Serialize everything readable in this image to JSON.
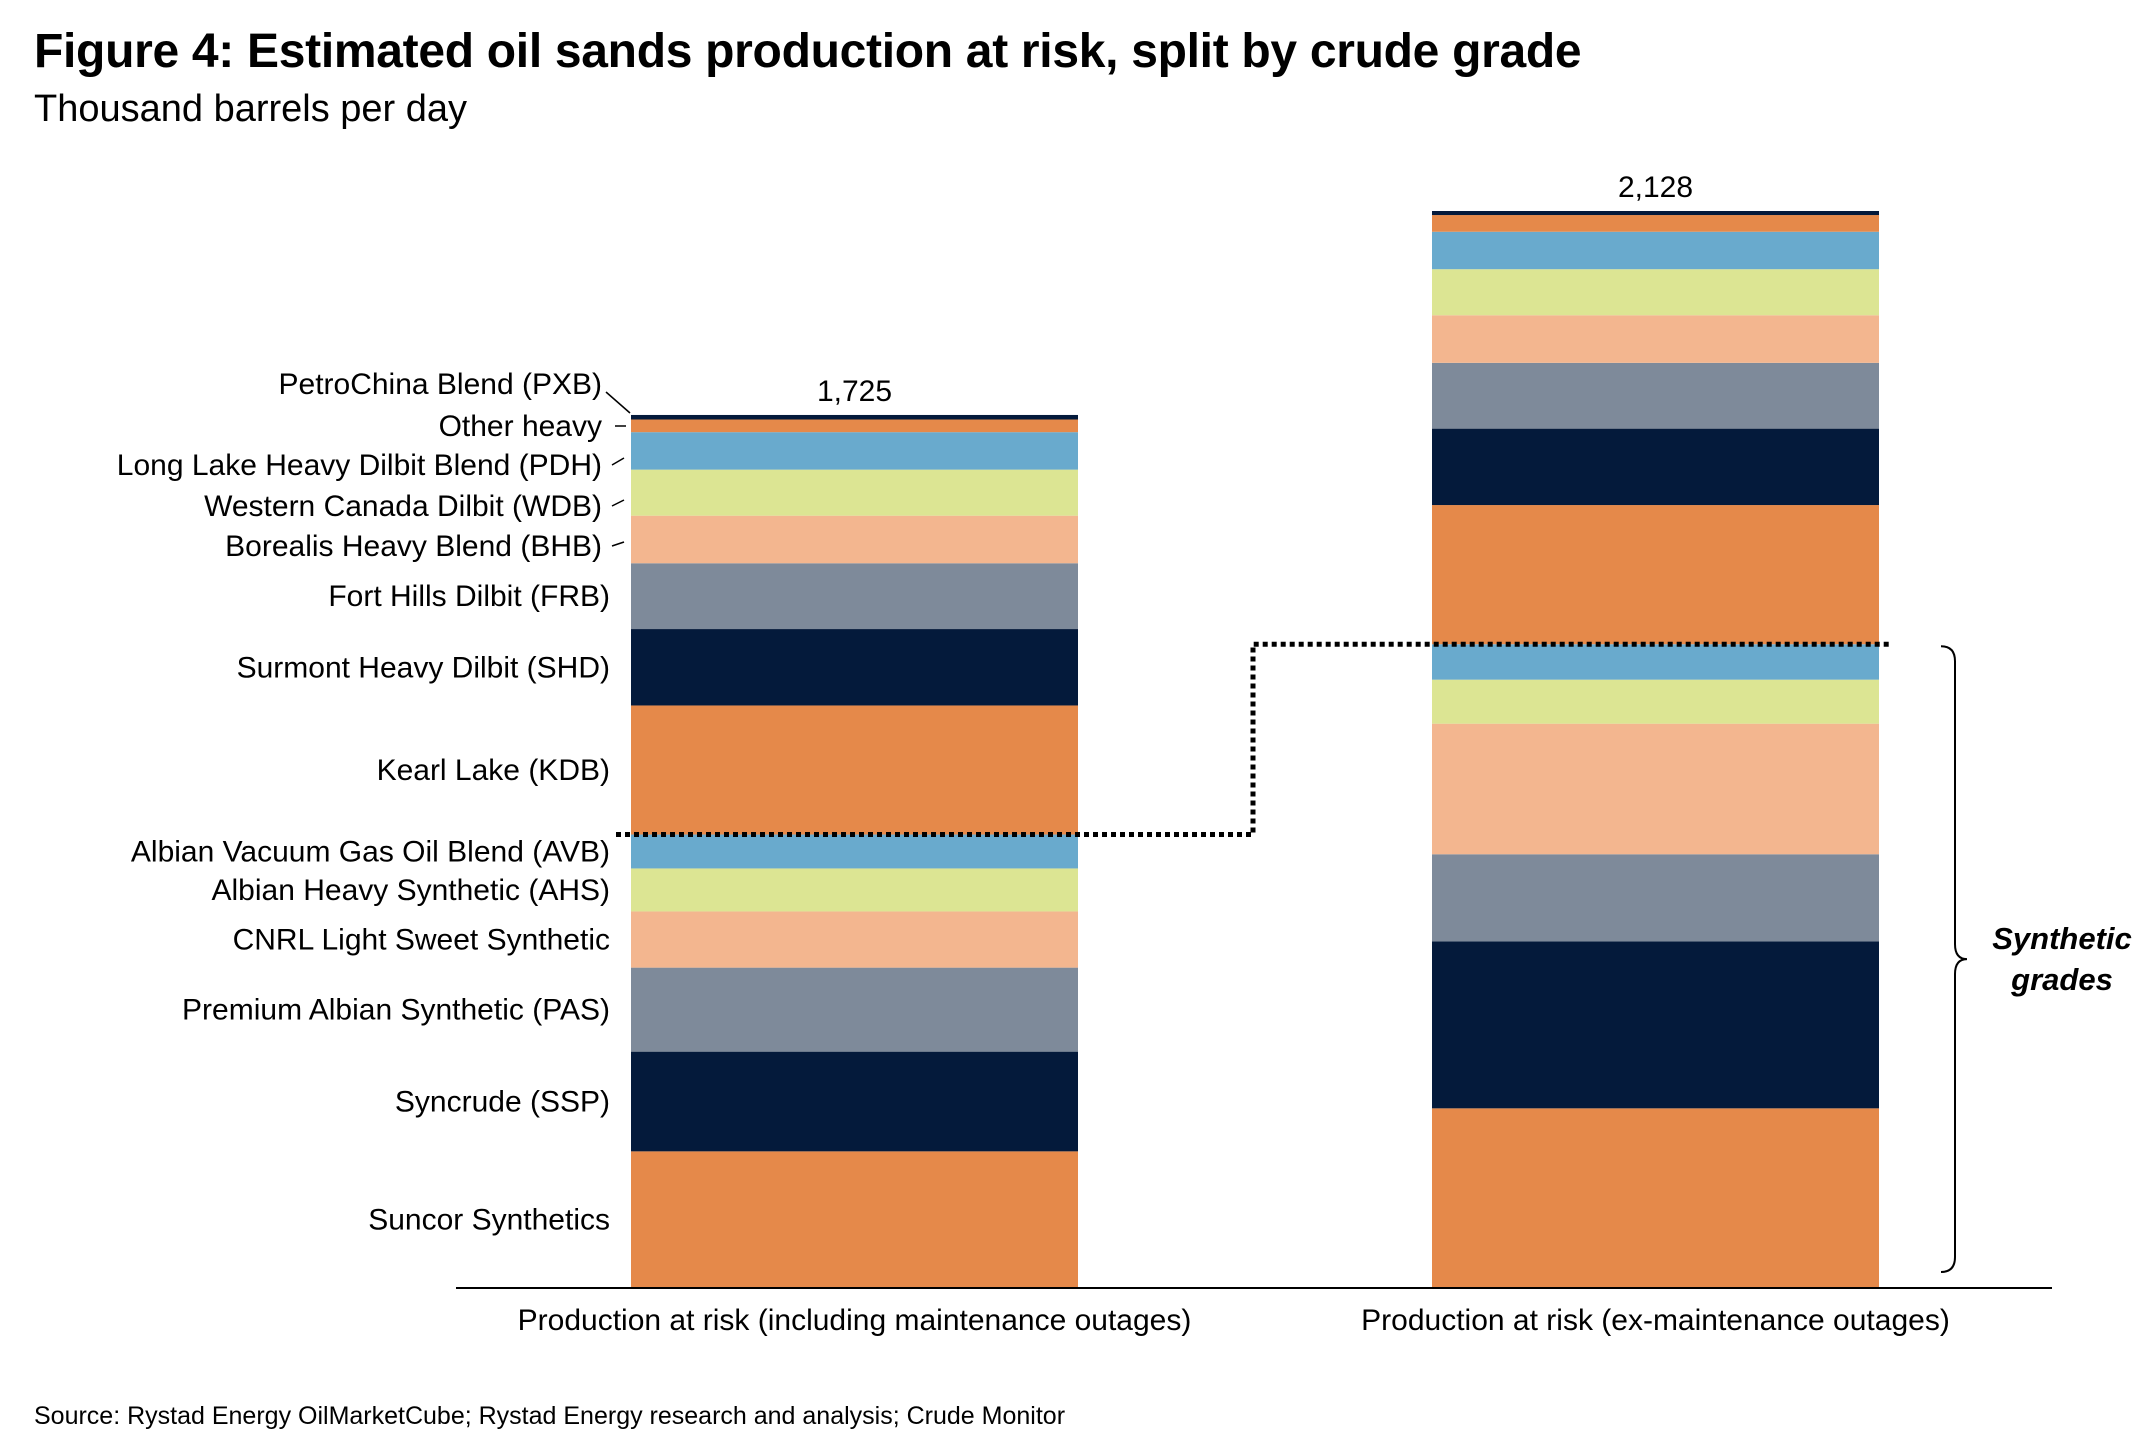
{
  "title": "Figure 4: Estimated oil sands production at risk, split by crude grade",
  "subtitle": "Thousand barrels per day",
  "source": "Source: Rystad Energy OilMarketCube; Rystad Energy research and analysis; Crude Monitor",
  "annotation": {
    "line1": "Synthetic",
    "line2": "grades"
  },
  "colors": {
    "orange": "#E5894A",
    "navy": "#041A3B",
    "slate": "#7E8A9A",
    "peach": "#F3B68F",
    "lime": "#DCE593",
    "skyblue": "#69AACD",
    "axis": "#000000"
  },
  "chart_data": {
    "type": "bar",
    "stacked": true,
    "title": "Figure 4: Estimated oil sands production at risk, split by crude grade",
    "ylabel": "Thousand barrels per day",
    "ylim": [
      0,
      2128
    ],
    "grid": false,
    "categories": [
      "Production at risk (including maintenance outages)",
      "Production at risk (ex-maintenance outages)"
    ],
    "totals": [
      1725,
      2128
    ],
    "total_labels": [
      "1,725",
      "2,128"
    ],
    "series": [
      {
        "name": "Suncor Synthetics",
        "group": "synthetic",
        "color": "orange",
        "values": [
          270,
          355
        ]
      },
      {
        "name": "Syncrude (SSP)",
        "group": "synthetic",
        "color": "navy",
        "values": [
          197,
          330
        ]
      },
      {
        "name": "Premium Albian Synthetic (PAS)",
        "group": "synthetic",
        "color": "slate",
        "values": [
          166,
          172
        ]
      },
      {
        "name": "CNRL Light Sweet Synthetic",
        "group": "synthetic",
        "color": "peach",
        "values": [
          111,
          258
        ]
      },
      {
        "name": "Albian Heavy Synthetic (AHS)",
        "group": "synthetic",
        "color": "lime",
        "values": [
          85,
          87
        ]
      },
      {
        "name": "Albian Vacuum Gas Oil Blend (AVB)",
        "group": "synthetic",
        "color": "skyblue",
        "values": [
          67,
          70
        ]
      },
      {
        "name": "Kearl Lake (KDB)",
        "group": "bitumen",
        "color": "orange",
        "values": [
          255,
          275
        ]
      },
      {
        "name": "Surmont Heavy Dilbit (SHD)",
        "group": "bitumen",
        "color": "navy",
        "values": [
          151,
          151
        ]
      },
      {
        "name": "Fort Hills Dilbit (FRB)",
        "group": "bitumen",
        "color": "slate",
        "values": [
          130,
          130
        ]
      },
      {
        "name": "Borealis Heavy Blend (BHB)",
        "group": "bitumen",
        "color": "peach",
        "values": [
          94,
          94
        ]
      },
      {
        "name": "Western Canada Dilbit (WDB)",
        "group": "bitumen",
        "color": "lime",
        "values": [
          91,
          91
        ]
      },
      {
        "name": "Long Lake Heavy Dilbit Blend (PDH)",
        "group": "bitumen",
        "color": "skyblue",
        "values": [
          74,
          74
        ]
      },
      {
        "name": "Other heavy",
        "group": "bitumen",
        "color": "orange",
        "values": [
          25,
          33
        ]
      },
      {
        "name": "PetroChina Blend (PXB)",
        "group": "bitumen",
        "color": "navy",
        "values": [
          9,
          8
        ]
      }
    ]
  }
}
